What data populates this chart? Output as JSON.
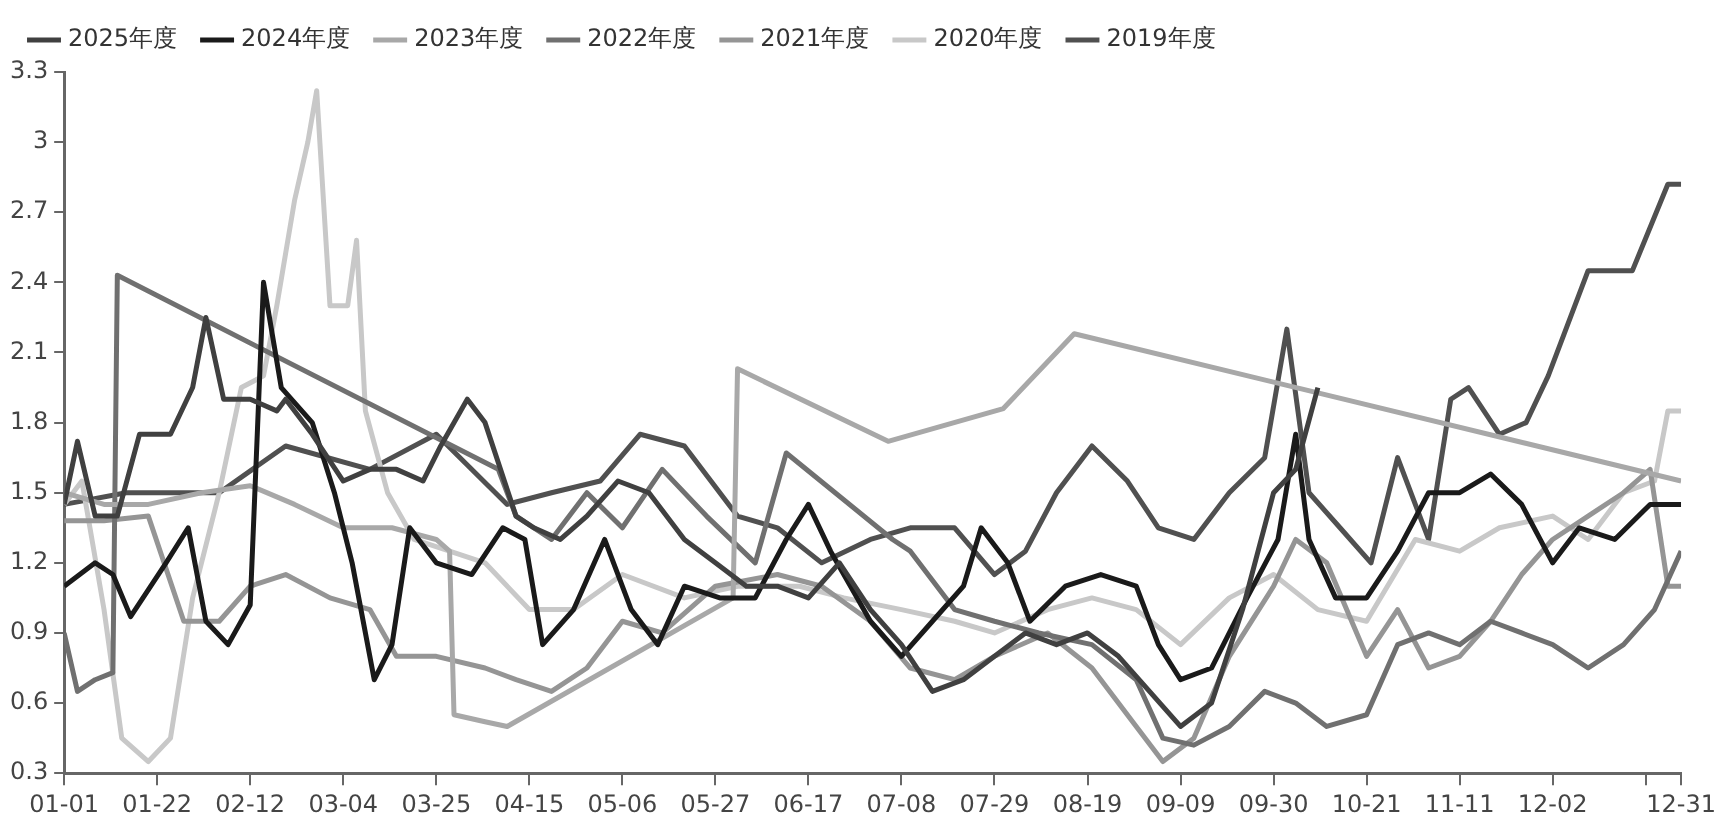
{
  "chart_data": {
    "type": "line",
    "legend": "top",
    "grid": false,
    "marker": "none",
    "line_style": "solid",
    "xlim": [
      "--01-01",
      "--12-31"
    ],
    "xticks": [
      {
        "value": "--01-01",
        "label": "01-01"
      },
      {
        "value": "--01-22",
        "label": "01-22"
      },
      {
        "value": "--02-12",
        "label": "02-12"
      },
      {
        "value": "--03-04",
        "label": "03-04"
      },
      {
        "value": "--03-25",
        "label": "03-25"
      },
      {
        "value": "--04-15",
        "label": "04-15"
      },
      {
        "value": "--05-06",
        "label": "05-06"
      },
      {
        "value": "--05-27",
        "label": "05-27"
      },
      {
        "value": "--06-17",
        "label": "06-17"
      },
      {
        "value": "--07-08",
        "label": "07-08"
      },
      {
        "value": "--07-29",
        "label": "07-29"
      },
      {
        "value": "--08-19",
        "label": "08-19"
      },
      {
        "value": "--09-09",
        "label": "09-09"
      },
      {
        "value": "--09-30",
        "label": "09-30"
      },
      {
        "value": "--10-21",
        "label": "10-21"
      },
      {
        "value": "--11-11",
        "label": "11-11"
      },
      {
        "value": "--12-02",
        "label": "12-02"
      },
      {
        "value": "--12-23",
        "label": null
      },
      {
        "value": "--12-31",
        "label": "12-31"
      }
    ],
    "ylim": [
      0.3,
      3.3
    ],
    "yticks": [
      0.3,
      0.6,
      0.9,
      1.2,
      1.5,
      1.8,
      2.1,
      2.4,
      2.7,
      3,
      3.3
    ],
    "series": [
      {
        "name": "2025年度",
        "color": "#404040",
        "x": [
          "--01-01",
          "--01-04",
          "--01-08",
          "--01-13",
          "--01-18",
          "--01-25",
          "--01-30",
          "--02-02",
          "--02-06",
          "--02-12",
          "--02-18",
          "--02-20",
          "--02-26",
          "--03-04",
          "--03-10",
          "--03-16",
          "--03-22",
          "--03-26",
          "--04-01",
          "--04-05",
          "--04-12",
          "--04-16",
          "--04-22",
          "--04-28",
          "--05-05",
          "--05-12",
          "--05-20",
          "--05-27",
          "--06-03",
          "--06-10",
          "--06-17",
          "--06-24",
          "--07-01",
          "--07-08",
          "--07-15",
          "--07-22",
          "--07-29",
          "--08-05",
          "--08-12",
          "--08-19",
          "--08-26",
          "--09-02",
          "--09-09",
          "--09-16",
          "--09-23",
          "--09-30",
          "--10-05",
          "--10-10"
        ],
        "values": [
          1.45,
          1.72,
          1.4,
          1.4,
          1.75,
          1.75,
          1.95,
          2.25,
          1.9,
          1.9,
          1.85,
          1.9,
          1.75,
          1.55,
          1.6,
          1.6,
          1.55,
          1.7,
          1.9,
          1.8,
          1.4,
          1.35,
          1.3,
          1.4,
          1.55,
          1.5,
          1.3,
          1.2,
          1.1,
          1.1,
          1.05,
          1.2,
          1.0,
          0.85,
          0.65,
          0.7,
          0.8,
          0.9,
          0.85,
          0.9,
          0.8,
          0.65,
          0.5,
          0.6,
          1.0,
          1.5,
          1.6,
          1.95
        ]
      },
      {
        "name": "2024年度",
        "color": "#1a1a1a",
        "x": [
          "--01-01",
          "--01-08",
          "--01-12",
          "--01-16",
          "--01-24",
          "--01-29",
          "--02-02",
          "--02-07",
          "--02-12",
          "--02-15",
          "--02-19",
          "--02-26",
          "--03-02",
          "--03-06",
          "--03-11",
          "--03-15",
          "--03-19",
          "--03-25",
          "--04-02",
          "--04-09",
          "--04-14",
          "--04-18",
          "--04-25",
          "--05-02",
          "--05-08",
          "--05-14",
          "--05-20",
          "--05-28",
          "--06-05",
          "--06-12",
          "--06-17",
          "--06-22",
          "--07-01",
          "--07-08",
          "--07-15",
          "--07-22",
          "--07-26",
          "--08-01",
          "--08-06",
          "--08-14",
          "--08-22",
          "--08-30",
          "--09-04",
          "--09-09",
          "--09-16",
          "--09-24",
          "--10-01",
          "--10-05",
          "--10-08",
          "--10-14",
          "--10-21",
          "--10-28",
          "--11-04",
          "--11-11",
          "--11-18",
          "--11-25",
          "--12-02",
          "--12-08",
          "--12-16",
          "--12-24",
          "--12-31"
        ],
        "values": [
          1.1,
          1.2,
          1.15,
          0.97,
          1.2,
          1.35,
          0.95,
          0.85,
          1.02,
          2.4,
          1.95,
          1.8,
          1.5,
          1.2,
          0.7,
          0.85,
          1.35,
          1.2,
          1.15,
          1.35,
          1.3,
          0.85,
          1.0,
          1.3,
          1.0,
          0.85,
          1.1,
          1.05,
          1.05,
          1.3,
          1.45,
          1.25,
          0.95,
          0.8,
          0.95,
          1.1,
          1.35,
          1.2,
          0.95,
          1.1,
          1.15,
          1.1,
          0.85,
          0.7,
          0.75,
          1.05,
          1.3,
          1.75,
          1.3,
          1.05,
          1.05,
          1.25,
          1.5,
          1.5,
          1.58,
          1.45,
          1.2,
          1.35,
          1.3,
          1.45,
          1.45
        ]
      },
      {
        "name": "2023年度",
        "color": "#a8a8a8",
        "x": [
          "--01-01",
          "--01-10",
          "--01-20",
          "--02-01",
          "--02-12",
          "--02-22",
          "--03-04",
          "--03-15",
          "--03-25",
          "--03-28",
          "--03-29",
          "--04-05",
          "--04-10",
          "--05-31",
          "--06-01",
          "--07-05",
          "--07-31",
          "--08-16",
          "--12-31"
        ],
        "values": [
          1.5,
          1.45,
          1.45,
          1.5,
          1.53,
          1.45,
          1.35,
          1.35,
          1.3,
          1.25,
          0.55,
          0.52,
          0.5,
          1.05,
          2.03,
          1.72,
          1.86,
          2.18,
          1.55
        ]
      },
      {
        "name": "2022年度",
        "color": "#707070",
        "x": [
          "--01-01",
          "--01-04",
          "--01-08",
          "--01-12",
          "--01-13",
          "--04-08",
          "--04-12",
          "--04-20",
          "--04-28",
          "--05-06",
          "--05-15",
          "--05-25",
          "--06-05",
          "--06-12",
          "--07-06",
          "--07-10",
          "--07-20",
          "--07-29",
          "--08-08",
          "--08-20",
          "--08-30",
          "--09-05",
          "--09-12",
          "--09-20",
          "--09-28",
          "--10-05",
          "--10-12",
          "--10-21",
          "--10-28",
          "--11-04",
          "--11-11",
          "--11-18",
          "--11-25",
          "--12-02",
          "--12-10",
          "--12-18",
          "--12-25",
          "--12-31"
        ],
        "values": [
          0.9,
          0.65,
          0.7,
          0.73,
          2.43,
          1.6,
          1.4,
          1.3,
          1.5,
          1.35,
          1.6,
          1.4,
          1.2,
          1.67,
          1.3,
          1.25,
          1.0,
          0.95,
          0.9,
          0.85,
          0.7,
          0.45,
          0.42,
          0.5,
          0.65,
          0.6,
          0.5,
          0.55,
          0.85,
          0.9,
          0.85,
          0.95,
          0.9,
          0.85,
          0.75,
          0.85,
          1.0,
          1.25
        ]
      },
      {
        "name": "2021年度",
        "color": "#959595",
        "x": [
          "--01-01",
          "--01-10",
          "--01-20",
          "--01-28",
          "--02-05",
          "--02-12",
          "--02-20",
          "--03-01",
          "--03-10",
          "--03-16",
          "--03-25",
          "--04-05",
          "--04-12",
          "--04-20",
          "--04-28",
          "--05-06",
          "--05-15",
          "--05-27",
          "--06-10",
          "--06-20",
          "--07-01",
          "--07-10",
          "--07-20",
          "--07-29",
          "--08-10",
          "--08-20",
          "--08-30",
          "--09-05",
          "--09-12",
          "--09-20",
          "--09-30",
          "--10-05",
          "--10-12",
          "--10-21",
          "--10-28",
          "--11-04",
          "--11-11",
          "--11-18",
          "--11-25",
          "--12-02",
          "--12-10",
          "--12-18",
          "--12-24",
          "--12-28",
          "--12-31"
        ],
        "values": [
          1.38,
          1.38,
          1.4,
          0.95,
          0.95,
          1.1,
          1.15,
          1.05,
          1.0,
          0.8,
          0.8,
          0.75,
          0.7,
          0.65,
          0.75,
          0.95,
          0.9,
          1.1,
          1.15,
          1.1,
          0.95,
          0.75,
          0.7,
          0.8,
          0.9,
          0.75,
          0.5,
          0.35,
          0.45,
          0.8,
          1.1,
          1.3,
          1.2,
          0.8,
          1.0,
          0.75,
          0.8,
          0.95,
          1.15,
          1.3,
          1.4,
          1.5,
          1.6,
          1.1,
          1.1
        ]
      },
      {
        "name": "2020年度",
        "color": "#c8c8c8",
        "x": [
          "--01-01",
          "--01-05",
          "--01-10",
          "--01-14",
          "--01-20",
          "--01-25",
          "--01-30",
          "--02-05",
          "--02-10",
          "--02-15",
          "--02-18",
          "--02-22",
          "--02-25",
          "--02-27",
          "--03-01",
          "--03-05",
          "--03-07",
          "--03-09",
          "--03-14",
          "--03-20",
          "--03-28",
          "--04-05",
          "--04-15",
          "--04-25",
          "--05-06",
          "--05-20",
          "--06-01",
          "--06-15",
          "--06-25",
          "--07-08",
          "--07-20",
          "--07-29",
          "--08-10",
          "--08-20",
          "--08-30",
          "--09-09",
          "--09-20",
          "--09-30",
          "--10-10",
          "--10-21",
          "--11-01",
          "--11-11",
          "--11-20",
          "--12-02",
          "--12-10",
          "--12-18",
          "--12-25",
          "--12-28",
          "--12-31"
        ],
        "values": [
          1.45,
          1.55,
          1.0,
          0.45,
          0.35,
          0.45,
          1.05,
          1.5,
          1.95,
          2.0,
          2.3,
          2.75,
          3.0,
          3.22,
          2.3,
          2.3,
          2.58,
          1.85,
          1.5,
          1.3,
          1.25,
          1.2,
          1.0,
          1.0,
          1.15,
          1.05,
          1.1,
          1.1,
          1.05,
          1.0,
          0.95,
          0.9,
          1.0,
          1.05,
          1.0,
          0.85,
          1.05,
          1.15,
          1.0,
          0.95,
          1.3,
          1.25,
          1.35,
          1.4,
          1.3,
          1.5,
          1.55,
          1.85,
          1.85
        ]
      },
      {
        "name": "2019年度",
        "color": "#505050",
        "x": [
          "--01-01",
          "--01-15",
          "--02-05",
          "--02-20",
          "--03-10",
          "--03-25",
          "--04-10",
          "--04-20",
          "--05-01",
          "--05-10",
          "--05-20",
          "--06-01",
          "--06-10",
          "--06-20",
          "--07-01",
          "--07-10",
          "--07-20",
          "--07-29",
          "--08-05",
          "--08-12",
          "--08-20",
          "--08-28",
          "--09-04",
          "--09-12",
          "--09-20",
          "--09-28",
          "--10-03",
          "--10-08",
          "--10-15",
          "--10-22",
          "--10-28",
          "--11-04",
          "--11-09",
          "--11-13",
          "--11-20",
          "--11-26",
          "--12-01",
          "--12-05",
          "--12-10",
          "--12-20",
          "--12-28",
          "--12-31"
        ],
        "values": [
          1.45,
          1.5,
          1.5,
          1.7,
          1.6,
          1.75,
          1.45,
          1.5,
          1.55,
          1.75,
          1.7,
          1.4,
          1.35,
          1.2,
          1.3,
          1.35,
          1.35,
          1.15,
          1.25,
          1.5,
          1.7,
          1.55,
          1.35,
          1.3,
          1.5,
          1.65,
          2.2,
          1.5,
          1.35,
          1.2,
          1.65,
          1.3,
          1.9,
          1.95,
          1.75,
          1.8,
          2.0,
          2.2,
          2.45,
          2.45,
          2.82,
          2.82
        ]
      }
    ]
  }
}
